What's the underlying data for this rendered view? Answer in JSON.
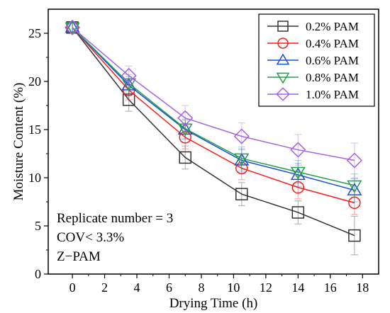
{
  "chart_data": {
    "type": "line",
    "title": "",
    "xlabel": "Drying Time (h)",
    "ylabel": "Moisture Content (%)",
    "xlim": [
      -1.5,
      19
    ],
    "ylim": [
      0,
      27.5
    ],
    "xticks": [
      0,
      2,
      4,
      6,
      8,
      10,
      12,
      14,
      16,
      18
    ],
    "yticks": [
      0,
      5,
      10,
      15,
      20,
      25
    ],
    "grid": false,
    "legend_position": "top-right",
    "x": [
      0,
      3.5,
      7,
      10.5,
      14,
      17.5
    ],
    "series": [
      {
        "name": "0.2% PAM",
        "marker": "square",
        "color": "#333333",
        "values": [
          25.6,
          18.1,
          12.1,
          8.3,
          6.4,
          4.0
        ],
        "errors": [
          0.5,
          1.2,
          1.2,
          1.2,
          1.2,
          2.0
        ]
      },
      {
        "name": "0.4% PAM",
        "marker": "circle",
        "color": "#ff1a1a",
        "values": [
          25.6,
          19.1,
          14.2,
          11.0,
          9.0,
          7.4
        ],
        "errors": [
          0.5,
          1.0,
          1.2,
          1.2,
          1.2,
          1.2
        ]
      },
      {
        "name": "0.6% PAM",
        "marker": "triangle-up",
        "color": "#1a4fd6",
        "values": [
          25.6,
          19.6,
          15.0,
          11.8,
          10.3,
          8.7
        ],
        "errors": [
          0.5,
          0.9,
          1.0,
          1.2,
          1.2,
          1.2
        ]
      },
      {
        "name": "0.8% PAM",
        "marker": "triangle-down",
        "color": "#22a04a",
        "values": [
          25.6,
          19.8,
          15.1,
          12.0,
          10.6,
          9.2
        ],
        "errors": [
          0.5,
          0.9,
          1.0,
          1.2,
          1.2,
          1.2
        ]
      },
      {
        "name": "1.0% PAM",
        "marker": "diamond",
        "color": "#a463e0",
        "values": [
          25.6,
          20.6,
          16.2,
          14.3,
          12.9,
          11.8
        ],
        "errors": [
          0.5,
          1.0,
          1.3,
          1.4,
          1.6,
          1.8
        ]
      }
    ],
    "annotations": [
      "Replicate number = 3",
      "COV< 3.3%",
      "Z−PAM"
    ]
  }
}
